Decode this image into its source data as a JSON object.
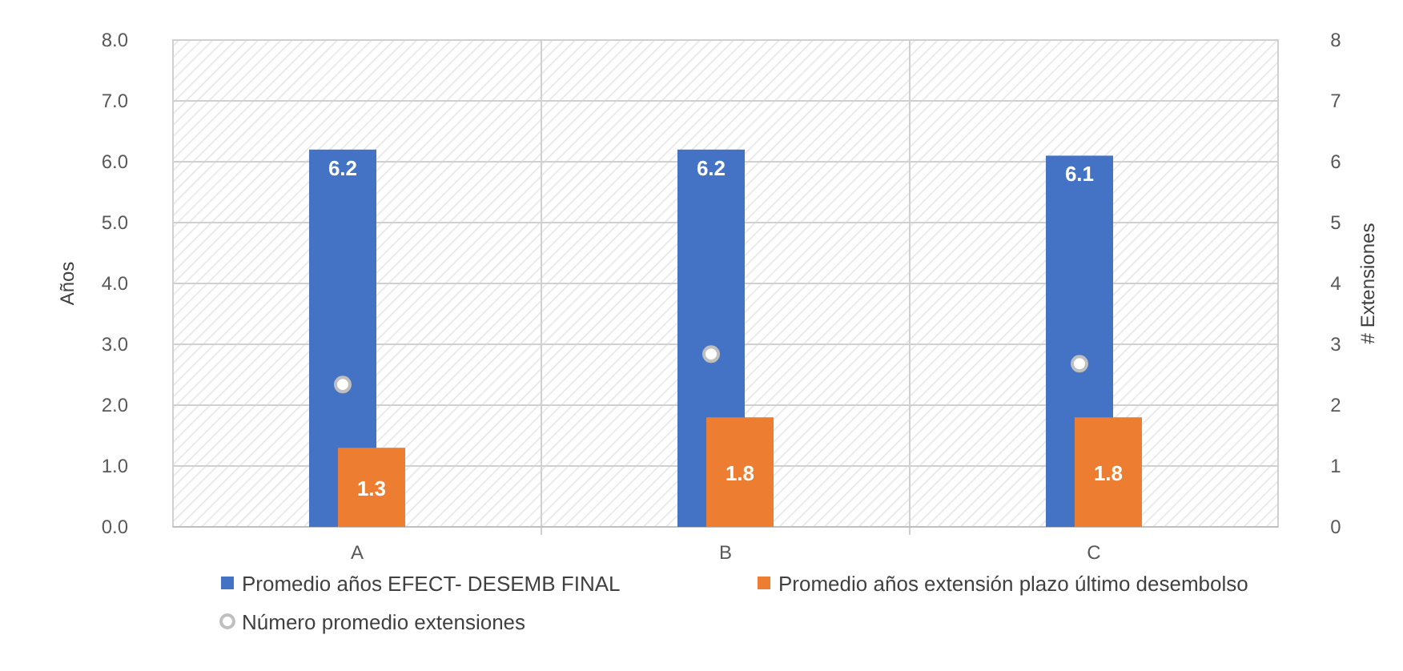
{
  "chart_data": {
    "type": "bar",
    "categories": [
      "A",
      "B",
      "C"
    ],
    "ylabel": "Años",
    "y2label": "# Extensiones",
    "ylim": [
      0,
      8
    ],
    "yticks": [
      {
        "value": 0,
        "label": "0.0"
      },
      {
        "value": 1,
        "label": "1.0"
      },
      {
        "value": 2,
        "label": "2.0"
      },
      {
        "value": 3,
        "label": "3.0"
      },
      {
        "value": 4,
        "label": "4.0"
      },
      {
        "value": 5,
        "label": "5.0"
      },
      {
        "value": 6,
        "label": "6.0"
      },
      {
        "value": 7,
        "label": "7.0"
      },
      {
        "value": 8,
        "label": "8.0"
      }
    ],
    "y2lim": [
      0,
      8
    ],
    "y2ticks": [
      0,
      1,
      2,
      3,
      4,
      5,
      6,
      7,
      8
    ],
    "series": [
      {
        "name": "Promedio años EFECT- DESEMB FINAL",
        "color": "#4472c4",
        "values": [
          6.2,
          6.2,
          6.1
        ],
        "value_labels": [
          "6.2",
          "6.2",
          "6.1"
        ]
      },
      {
        "name": "Promedio años extensión plazo último desembolso",
        "color": "#ed7d31",
        "values": [
          1.3,
          1.8,
          1.8
        ],
        "value_labels": [
          "1.3",
          "1.8",
          "1.8"
        ]
      },
      {
        "name": "Número promedio extensiones",
        "type": "scatter",
        "axis": "y2",
        "color": "#bfbfbf",
        "values": [
          2.34,
          2.84,
          2.68
        ]
      }
    ],
    "grid": true,
    "legend": "bottom",
    "marker": "circle"
  }
}
